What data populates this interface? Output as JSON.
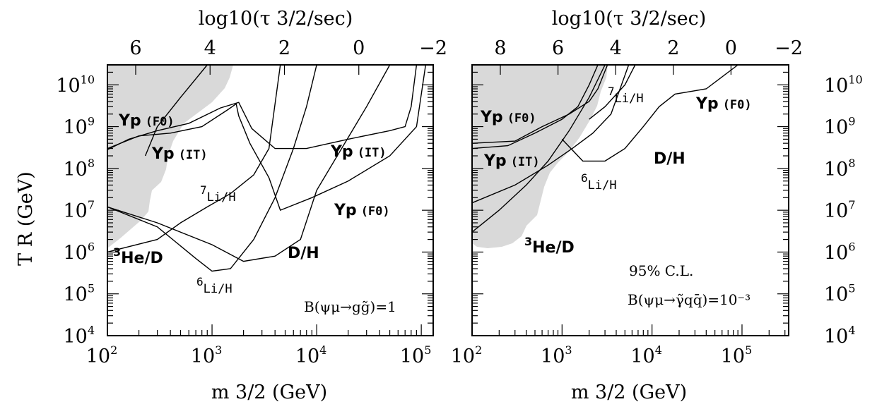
{
  "chart_data": [
    {
      "type": "line",
      "panel": "left",
      "xlabel": "m 3/2 (GeV)",
      "ylabel": "T R (GeV)",
      "top_xlabel": "log10(τ 3/2/sec)",
      "x_scale": "log",
      "y_scale": "log",
      "xlim": [
        100,
        130000
      ],
      "ylim": [
        10000,
        30000000000
      ],
      "x_tick_labels": [
        "10^2",
        "10^3",
        "10^4",
        "10^5"
      ],
      "y_tick_labels": [
        "10^4",
        "10^5",
        "10^6",
        "10^7",
        "10^8",
        "10^9",
        "10^10"
      ],
      "top_tick_labels": [
        "6",
        "4",
        "2",
        "0",
        "−2"
      ],
      "top_tick_values": [
        6,
        4,
        2,
        0,
        -2
      ],
      "annotation": "B(ψμ→gg̃)=1",
      "excluded_region_color": "#d9d9d9",
      "series": [
        {
          "name": "Yp(F0)",
          "points": [
            [
              100,
              300000000
            ],
            [
              200,
              600000000
            ],
            [
              400,
              700000000
            ],
            [
              800,
              1000000000
            ],
            [
              1400,
              2500000000
            ],
            [
              1700,
              3500000000
            ],
            [
              1800,
              1800000000
            ],
            [
              2300,
              400000000
            ],
            [
              3500,
              60000000
            ],
            [
              4500,
              10000000
            ],
            [
              9000,
              20000000
            ],
            [
              20000,
              50000000
            ],
            [
              50000,
              200000000
            ],
            [
              90000,
              1000000000
            ],
            [
              110000,
              30000000000
            ]
          ]
        },
        {
          "name": "Yp(IT)",
          "points": [
            [
              100,
              280000000
            ],
            [
              160,
              500000000
            ],
            [
              300,
              800000000
            ],
            [
              600,
              1200000000
            ],
            [
              1200,
              2800000000
            ],
            [
              1800,
              3800000000
            ],
            [
              2400,
              900000000
            ],
            [
              4000,
              300000000
            ],
            [
              8000,
              300000000
            ],
            [
              20000,
              500000000
            ],
            [
              50000,
              800000000
            ],
            [
              70000,
              1000000000
            ],
            [
              80000,
              3000000000
            ],
            [
              90000,
              30000000000
            ]
          ]
        },
        {
          "name": "3He/D",
          "points": [
            [
              100,
              1000000
            ],
            [
              300,
              2000000
            ],
            [
              500,
              5000000
            ],
            [
              900,
              12000000
            ],
            [
              1500,
              25000000
            ],
            [
              2500,
              70000000
            ],
            [
              3500,
              300000000
            ],
            [
              4500,
              30000000000
            ]
          ]
        },
        {
          "name": "7Li/H",
          "points": [
            [
              230,
              200000000
            ],
            [
              300,
              1000000000
            ],
            [
              500,
              5000000000
            ],
            [
              900,
              30000000000
            ]
          ]
        },
        {
          "name": "6Li/H",
          "points": [
            [
              100,
              12000000
            ],
            [
              300,
              4000000
            ],
            [
              700,
              700000
            ],
            [
              1000,
              350000
            ],
            [
              1500,
              400000
            ],
            [
              2500,
              2000000
            ],
            [
              4000,
              20000000
            ],
            [
              6000,
              300000000
            ],
            [
              8000,
              3000000000
            ],
            [
              10000,
              30000000000
            ]
          ]
        },
        {
          "name": "D/H",
          "points": [
            [
              100,
              12000000
            ],
            [
              300,
              5000000
            ],
            [
              1000,
              1500000
            ],
            [
              2000,
              600000
            ],
            [
              4000,
              800000
            ],
            [
              7000,
              2000000
            ],
            [
              10000,
              30000000
            ],
            [
              30000,
              3000000000
            ],
            [
              50000,
              30000000000
            ]
          ]
        }
      ],
      "curve_labels": [
        "Yp",
        "(F0)",
        "Yp",
        "(IT)",
        "7",
        "Li/H",
        "Yp",
        "(IT)",
        "Yp",
        "(F0)",
        "3",
        "He/D",
        "D/H",
        "6",
        "Li/H"
      ]
    },
    {
      "type": "line",
      "panel": "right",
      "xlabel": "m 3/2 (GeV)",
      "top_xlabel": "log10(τ 3/2/sec)",
      "x_scale": "log",
      "y_scale": "log",
      "xlim": [
        100,
        330000
      ],
      "ylim": [
        10000,
        30000000000
      ],
      "x_tick_labels": [
        "10^2",
        "10^3",
        "10^4",
        "10^5"
      ],
      "y_tick_labels": [
        "10^4",
        "10^5",
        "10^6",
        "10^7",
        "10^8",
        "10^9",
        "10^10"
      ],
      "top_tick_labels": [
        "8",
        "6",
        "4",
        "2",
        "0",
        "−2"
      ],
      "top_tick_values": [
        8,
        6,
        4,
        2,
        0,
        -2
      ],
      "annotation_cl": "95% C.L.",
      "annotation": "B(ψμ→γ̃qq̄)=10⁻³",
      "excluded_region_color": "#d9d9d9",
      "series": [
        {
          "name": "Yp(F0)",
          "points": [
            [
              100,
              400000000
            ],
            [
              300,
              450000000
            ],
            [
              600,
              1000000000
            ],
            [
              1200,
              2000000000
            ],
            [
              2000,
              4000000000
            ],
            [
              2500,
              8000000000
            ],
            [
              3200,
              30000000000
            ]
          ]
        },
        {
          "name": "Yp(IT)",
          "points": [
            [
              100,
              300000000
            ],
            [
              250,
              350000000
            ],
            [
              500,
              700000000
            ],
            [
              1000,
              1500000000
            ],
            [
              1500,
              3000000000
            ],
            [
              2000,
              10000000000
            ],
            [
              2500,
              30000000000
            ]
          ]
        },
        {
          "name": "3He/D",
          "points": [
            [
              100,
              3000000
            ],
            [
              200,
              10000000
            ],
            [
              400,
              40000000
            ],
            [
              700,
              150000000
            ],
            [
              1200,
              800000000
            ],
            [
              2000,
              5000000000
            ],
            [
              3000,
              30000000000
            ]
          ]
        },
        {
          "name": "7Li/H",
          "points": [
            [
              2000,
              1500000000
            ],
            [
              3000,
              3000000000
            ],
            [
              5000,
              10000000000
            ],
            [
              6500,
              30000000000
            ]
          ]
        },
        {
          "name": "6Li/H",
          "points": [
            [
              100,
              15000000
            ],
            [
              300,
              40000000
            ],
            [
              700,
              120000000
            ],
            [
              1300,
              300000000
            ],
            [
              2200,
              700000000
            ],
            [
              3500,
              2000000000
            ],
            [
              5500,
              30000000000
            ]
          ]
        },
        {
          "name": "D/H",
          "points": [
            [
              1000,
              500000000
            ],
            [
              1700,
              150000000
            ],
            [
              3000,
              150000000
            ],
            [
              5000,
              300000000
            ],
            [
              8000,
              1000000000
            ],
            [
              12000,
              3000000000
            ],
            [
              18000,
              6000000000
            ],
            [
              40000,
              8000000000
            ],
            [
              90000,
              30000000000
            ]
          ]
        }
      ],
      "curve_labels": [
        "7",
        "Li/H",
        "Yp",
        "(F0)",
        "Yp",
        "(F0)",
        "Yp",
        "(IT)",
        "D/H",
        "6",
        "Li/H",
        "3",
        "He/D"
      ]
    }
  ]
}
